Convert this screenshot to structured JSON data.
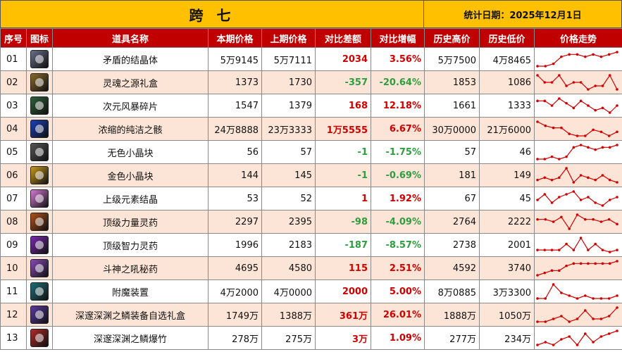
{
  "header": {
    "title": "跨 七",
    "date_label": "统计日期：2025年12月1日"
  },
  "columns": [
    "序号",
    "图标",
    "道具名称",
    "本期价格",
    "上期价格",
    "对比差额",
    "对比增幅",
    "历史高价",
    "历史低价",
    "价格走势"
  ],
  "watermark": "colg",
  "colors": {
    "title_bg": "#ffc000",
    "header_bg": "#c00000",
    "row_alt": "#fce4d6",
    "up": "#d00000",
    "down": "#2e9e3e",
    "spark": "#d00000"
  },
  "rows": [
    {
      "idx": "01",
      "icon": "crystal-icon",
      "icon_color": "#6a6f8a",
      "name": "矛盾的结晶体",
      "cur": "5万9145",
      "prev": "5万7111",
      "diff": "2034",
      "pct": "3.56%",
      "trend": "up",
      "high": "5万7500",
      "low": "4万8465",
      "spark": [
        2,
        2,
        3,
        6,
        7,
        7,
        6,
        7,
        6,
        7,
        8
      ]
    },
    {
      "idx": "02",
      "icon": "gift-box-icon",
      "icon_color": "#8a6a2a",
      "name": "灵魂之源礼盒",
      "cur": "1373",
      "prev": "1730",
      "diff": "-357",
      "pct": "-20.64%",
      "trend": "down",
      "high": "1853",
      "low": "1086",
      "spark": [
        6,
        4,
        4,
        6,
        3,
        4,
        4,
        2,
        3,
        3,
        6,
        2
      ]
    },
    {
      "idx": "03",
      "icon": "shard-icon",
      "icon_color": "#2f5f3a",
      "name": "次元风暴碎片",
      "cur": "1547",
      "prev": "1379",
      "diff": "168",
      "pct": "12.18%",
      "trend": "up",
      "high": "1661",
      "low": "1333",
      "spark": [
        6,
        6,
        4,
        7,
        5,
        3,
        6,
        4,
        2,
        3,
        1,
        4
      ]
    },
    {
      "idx": "04",
      "icon": "orb-icon",
      "icon_color": "#1a3fb8",
      "name": "浓缩的纯洁之骸",
      "cur": "24万8888",
      "prev": "23万3333",
      "diff": "1万5555",
      "pct": "6.67%",
      "trend": "up",
      "high": "30万0000",
      "low": "21万6000",
      "spark": [
        8,
        6,
        5,
        5,
        2,
        1,
        1,
        4,
        3,
        1,
        3
      ]
    },
    {
      "idx": "05",
      "icon": "gray-cube-icon",
      "icon_color": "#555555",
      "name": "无色小晶块",
      "cur": "56",
      "prev": "57",
      "diff": "-1",
      "pct": "-1.75%",
      "trend": "down",
      "high": "57",
      "low": "46",
      "spark": [
        1,
        1,
        2,
        1,
        2,
        6,
        7,
        6,
        5,
        6,
        6,
        7
      ]
    },
    {
      "idx": "06",
      "icon": "gold-cube-icon",
      "icon_color": "#c99a1c",
      "name": "金色小晶块",
      "cur": "144",
      "prev": "145",
      "diff": "-1",
      "pct": "-0.69%",
      "trend": "down",
      "high": "181",
      "low": "149",
      "spark": [
        2,
        3,
        2,
        3,
        7,
        1,
        4,
        3,
        2,
        4,
        2,
        1
      ]
    },
    {
      "idx": "07",
      "icon": "element-crystal-icon",
      "icon_color": "#d77bd4",
      "name": "上级元素结晶",
      "cur": "53",
      "prev": "52",
      "diff": "1",
      "pct": "1.92%",
      "trend": "up",
      "high": "67",
      "low": "45",
      "spark": [
        3,
        5,
        2,
        4,
        5,
        6,
        3,
        4,
        2,
        1,
        3,
        4
      ]
    },
    {
      "idx": "08",
      "icon": "strength-potion-icon",
      "icon_color": "#b0521a",
      "name": "顶级力量灵药",
      "cur": "2297",
      "prev": "2395",
      "diff": "-98",
      "pct": "-4.09%",
      "trend": "down",
      "high": "2764",
      "low": "2222",
      "spark": [
        5,
        5,
        4,
        6,
        1,
        7,
        5,
        5,
        4,
        5,
        3
      ]
    },
    {
      "idx": "09",
      "icon": "intelligence-potion-icon",
      "icon_color": "#7a2ab0",
      "name": "顶级智力灵药",
      "cur": "1996",
      "prev": "2183",
      "diff": "-187",
      "pct": "-8.57%",
      "trend": "down",
      "high": "2738",
      "low": "2001",
      "spark": [
        2,
        2,
        2,
        2,
        5,
        2,
        8,
        2,
        5,
        2,
        1,
        2
      ]
    },
    {
      "idx": "10",
      "icon": "roar-potion-icon",
      "icon_color": "#8a4ab8",
      "name": "斗神之吼秘药",
      "cur": "4695",
      "prev": "4580",
      "diff": "115",
      "pct": "2.51%",
      "trend": "up",
      "high": "4592",
      "low": "3740",
      "spark": [
        2,
        3,
        4,
        4,
        6,
        7,
        7,
        7,
        7,
        7,
        7,
        8
      ]
    },
    {
      "idx": "11",
      "icon": "enchant-device-icon",
      "icon_color": "#1f6e7a",
      "name": "附魔装置",
      "cur": "4万2000",
      "prev": "4万0000",
      "diff": "2000",
      "pct": "5.00%",
      "trend": "up",
      "high": "8万0885",
      "low": "3万3300",
      "spark": [
        2,
        2,
        7,
        4,
        3,
        2,
        3,
        2,
        2,
        2,
        3
      ]
    },
    {
      "idx": "12",
      "icon": "equipment-box-icon",
      "icon_color": "#5a3aa0",
      "name": "深邃深渊之鳞装备自选礼盒",
      "cur": "1749万",
      "prev": "1388万",
      "diff": "361万",
      "pct": "26.01%",
      "trend": "up",
      "high": "1888万",
      "low": "1050万",
      "spark": [
        2,
        2,
        3,
        4,
        2,
        3,
        6,
        3,
        3,
        4,
        7
      ]
    },
    {
      "idx": "13",
      "icon": "firecracker-icon",
      "icon_color": "#b02a2a",
      "name": "深邃深渊之鳞爆竹",
      "cur": "278万",
      "prev": "275万",
      "diff": "3万",
      "pct": "1.09%",
      "trend": "up",
      "high": "277万",
      "low": "234万",
      "spark": [
        2,
        3,
        2,
        4,
        5,
        2,
        6,
        3,
        5,
        6,
        7
      ]
    }
  ]
}
